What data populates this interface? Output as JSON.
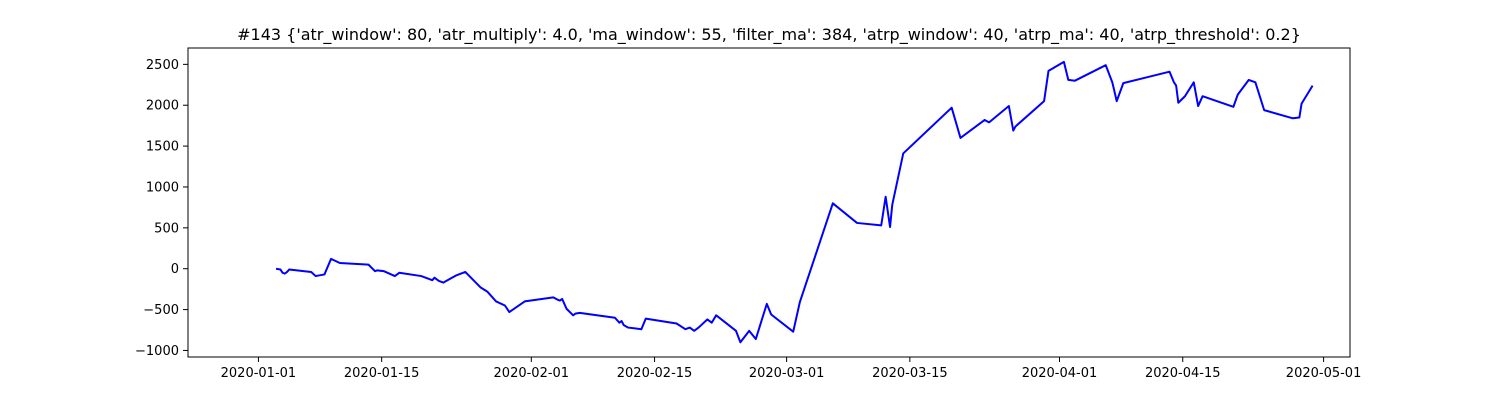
{
  "chart_data": {
    "type": "line",
    "title": "#143 {'atr_window': 80, 'atr_multiply': 4.0, 'ma_window': 55, 'filter_ma': 384, 'atrp_window': 40, 'atrp_ma': 40, 'atrp_threshold': 0.2}",
    "xlabel": "",
    "ylabel": "",
    "grid": false,
    "x_type": "date",
    "xlim": [
      "2019-12-24",
      "2020-05-04"
    ],
    "ylim": [
      -1080,
      2700
    ],
    "x_ticks": [
      "2020-01-01",
      "2020-01-15",
      "2020-02-01",
      "2020-02-15",
      "2020-03-01",
      "2020-03-15",
      "2020-04-01",
      "2020-04-15",
      "2020-05-01"
    ],
    "y_ticks": [
      -1000,
      -500,
      0,
      500,
      1000,
      1500,
      2000,
      2500
    ],
    "series": [
      {
        "color": "#0000ff",
        "points": [
          [
            "2020-01-03",
            0
          ],
          [
            "2020-01-03 12:00",
            -10
          ],
          [
            "2020-01-03 18:00",
            -50
          ],
          [
            "2020-01-04",
            -60
          ],
          [
            "2020-01-04 06:00",
            -40
          ],
          [
            "2020-01-04 12:00",
            -10
          ],
          [
            "2020-01-07",
            -40
          ],
          [
            "2020-01-07 12:00",
            -90
          ],
          [
            "2020-01-08 12:00",
            -70
          ],
          [
            "2020-01-09 06:00",
            120
          ],
          [
            "2020-01-10 06:00",
            70
          ],
          [
            "2020-01-13 12:00",
            50
          ],
          [
            "2020-01-14 06:00",
            -30
          ],
          [
            "2020-01-14 12:00",
            -20
          ],
          [
            "2020-01-15 06:00",
            -30
          ],
          [
            "2020-01-16 12:00",
            -90
          ],
          [
            "2020-01-17",
            -50
          ],
          [
            "2020-01-19 12:00",
            -90
          ],
          [
            "2020-01-20 18:00",
            -140
          ],
          [
            "2020-01-21",
            -110
          ],
          [
            "2020-01-21 12:00",
            -150
          ],
          [
            "2020-01-22",
            -170
          ],
          [
            "2020-01-22 12:00",
            -140
          ],
          [
            "2020-01-23 12:00",
            -80
          ],
          [
            "2020-01-24 12:00",
            -40
          ],
          [
            "2020-01-26 06:00",
            -230
          ],
          [
            "2020-01-27",
            -280
          ],
          [
            "2020-01-28",
            -400
          ],
          [
            "2020-01-29",
            -450
          ],
          [
            "2020-01-29 12:00",
            -530
          ],
          [
            "2020-01-31 06:00",
            -400
          ],
          [
            "2020-02-03 12:00",
            -350
          ],
          [
            "2020-02-04",
            -380
          ],
          [
            "2020-02-04 06:00",
            -390
          ],
          [
            "2020-02-04 12:00",
            -370
          ],
          [
            "2020-02-05",
            -490
          ],
          [
            "2020-02-05 18:00",
            -570
          ],
          [
            "2020-02-06",
            -550
          ],
          [
            "2020-02-06 12:00",
            -540
          ],
          [
            "2020-02-10 12:00",
            -600
          ],
          [
            "2020-02-11",
            -660
          ],
          [
            "2020-02-11 06:00",
            -640
          ],
          [
            "2020-02-11 12:00",
            -690
          ],
          [
            "2020-02-12",
            -720
          ],
          [
            "2020-02-13 12:00",
            -740
          ],
          [
            "2020-02-14",
            -610
          ],
          [
            "2020-02-17 12:00",
            -670
          ],
          [
            "2020-02-18 12:00",
            -740
          ],
          [
            "2020-02-19",
            -720
          ],
          [
            "2020-02-19 12:00",
            -760
          ],
          [
            "2020-02-20",
            -720
          ],
          [
            "2020-02-21",
            -620
          ],
          [
            "2020-02-21 12:00",
            -660
          ],
          [
            "2020-02-22",
            -570
          ],
          [
            "2020-02-24 06:00",
            -760
          ],
          [
            "2020-02-24 18:00",
            -900
          ],
          [
            "2020-02-25 18:00",
            -760
          ],
          [
            "2020-02-26 12:00",
            -860
          ],
          [
            "2020-02-27 18:00",
            -430
          ],
          [
            "2020-02-28 06:00",
            -560
          ],
          [
            "2020-03-01 18:00",
            -770
          ],
          [
            "2020-03-02 12:00",
            -410
          ],
          [
            "2020-03-06 06:00",
            800
          ],
          [
            "2020-03-09",
            560
          ],
          [
            "2020-03-11 18:00",
            530
          ],
          [
            "2020-03-12 06:00",
            880
          ],
          [
            "2020-03-12 18:00",
            510
          ],
          [
            "2020-03-13",
            780
          ],
          [
            "2020-03-14 06:00",
            1410
          ],
          [
            "2020-03-19 18:00",
            1970
          ],
          [
            "2020-03-20 18:00",
            1600
          ],
          [
            "2020-03-23 12:00",
            1820
          ],
          [
            "2020-03-24",
            1790
          ],
          [
            "2020-03-26 06:00",
            1990
          ],
          [
            "2020-03-26 18:00",
            1690
          ],
          [
            "2020-03-27",
            1740
          ],
          [
            "2020-03-30 06:00",
            2050
          ],
          [
            "2020-03-30 18:00",
            2420
          ],
          [
            "2020-04-01 12:00",
            2530
          ],
          [
            "2020-04-02",
            2310
          ],
          [
            "2020-04-02 18:00",
            2300
          ],
          [
            "2020-04-06 06:00",
            2490
          ],
          [
            "2020-04-07",
            2280
          ],
          [
            "2020-04-07 12:00",
            2050
          ],
          [
            "2020-04-08 06:00",
            2270
          ],
          [
            "2020-04-13 12:00",
            2410
          ],
          [
            "2020-04-14",
            2280
          ],
          [
            "2020-04-14 06:00",
            2240
          ],
          [
            "2020-04-14 12:00",
            2030
          ],
          [
            "2020-04-15 06:00",
            2110
          ],
          [
            "2020-04-16 06:00",
            2280
          ],
          [
            "2020-04-16 18:00",
            1990
          ],
          [
            "2020-04-17 06:00",
            2110
          ],
          [
            "2020-04-20 18:00",
            1980
          ],
          [
            "2020-04-21 06:00",
            2130
          ],
          [
            "2020-04-22 12:00",
            2310
          ],
          [
            "2020-04-23 06:00",
            2280
          ],
          [
            "2020-04-24 06:00",
            1940
          ],
          [
            "2020-04-27 12:00",
            1840
          ],
          [
            "2020-04-28 06:00",
            1850
          ],
          [
            "2020-04-28 12:00",
            2020
          ],
          [
            "2020-04-29 18:00",
            2240
          ]
        ]
      }
    ]
  }
}
